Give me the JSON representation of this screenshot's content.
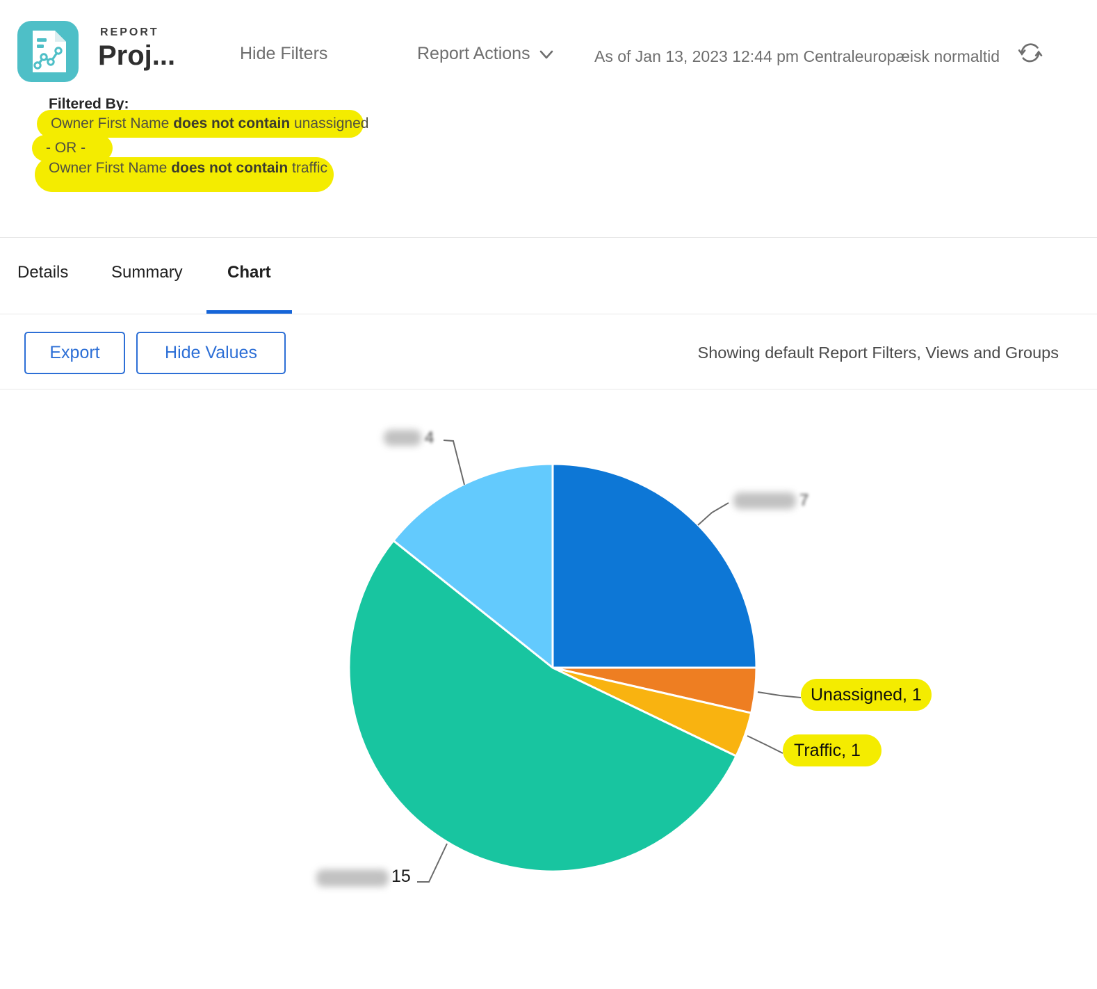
{
  "colors": {
    "accent_blue": "#1565D8",
    "button_blue": "#2D6FD6",
    "icon_teal": "#4EBFC7",
    "highlight_yellow": "#F4EC00",
    "text_gray": "#6E6E6E"
  },
  "header": {
    "kicker": "REPORT",
    "title": "Proj...",
    "hide_filters_label": "Hide Filters",
    "report_actions_label": "Report Actions",
    "as_of": "As of Jan 13, 2023 12:44 pm Centraleuropæisk normaltid"
  },
  "filters": {
    "heading": "Filtered By:",
    "row1": {
      "prefix": "Owner First Name ",
      "bold": "does not contain",
      "suffix": " unassigned"
    },
    "row2": {
      "text": "- OR -"
    },
    "row3": {
      "prefix": "Owner First Name ",
      "bold": "does not contain",
      "suffix": " traffic"
    }
  },
  "tabs": [
    {
      "label": "Details",
      "active": false
    },
    {
      "label": "Summary",
      "active": false
    },
    {
      "label": "Chart",
      "active": true
    }
  ],
  "toolbar": {
    "export_label": "Export",
    "hide_values_label": "Hide Values",
    "status": "Showing default Report Filters, Views and Groups"
  },
  "chart_data": {
    "type": "pie",
    "start": "top",
    "direction": "clockwise",
    "total": 28,
    "series": [
      {
        "label": "",
        "label_blurred": true,
        "value": 7,
        "color": "#0D77D6",
        "callout_value": "7"
      },
      {
        "label": "Unassigned",
        "label_blurred": false,
        "value": 1,
        "color": "#EE7E22",
        "callout_text": "Unassigned, 1",
        "highlighted": true
      },
      {
        "label": "Traffic",
        "label_blurred": false,
        "value": 1,
        "color": "#F9B310",
        "callout_text": "Traffic, 1",
        "highlighted": true
      },
      {
        "label": "",
        "label_blurred": true,
        "value": 15,
        "color": "#18C5A0",
        "callout_value": "15"
      },
      {
        "label": "",
        "label_blurred": true,
        "value": 4,
        "color": "#63CAFD",
        "callout_value": "4"
      }
    ]
  }
}
